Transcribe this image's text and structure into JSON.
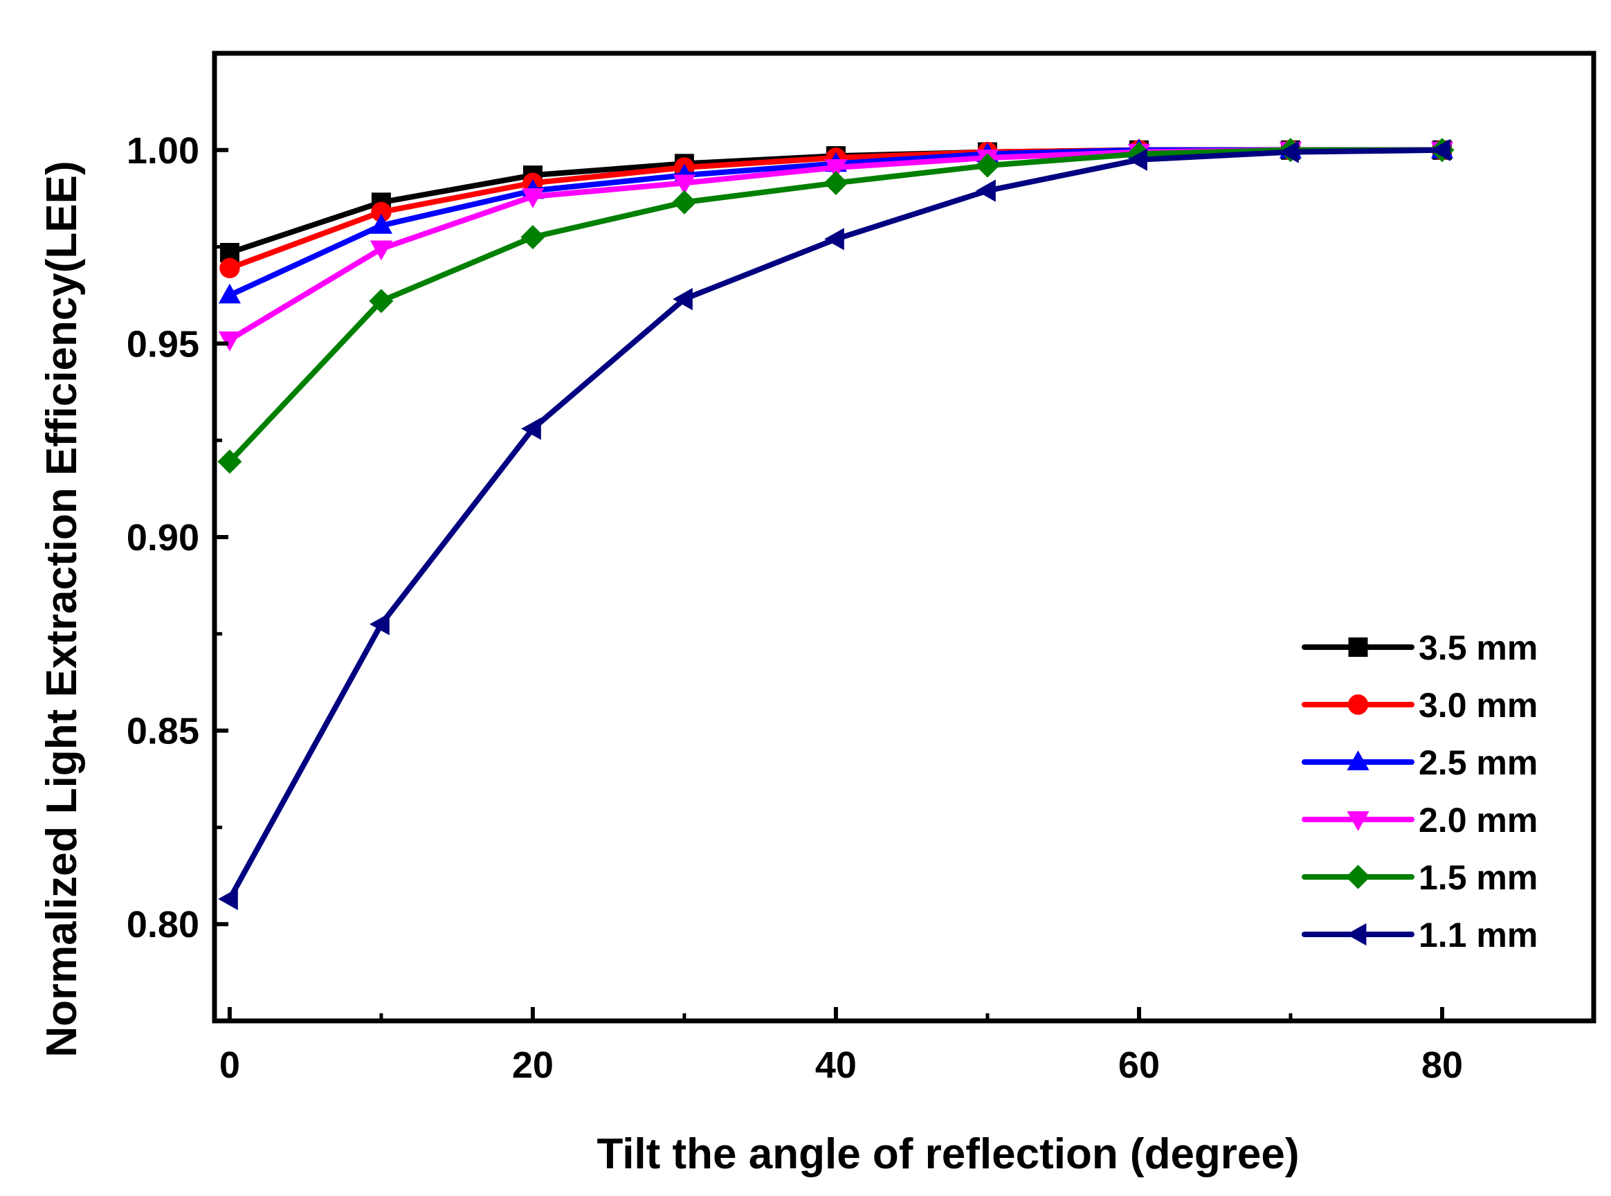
{
  "chart_data": {
    "type": "line",
    "xlabel": "Tilt the angle of reflection (degree)",
    "ylabel": "Normalized Light Extraction Efficiency(LEE)",
    "xlim": [
      -1,
      90
    ],
    "ylim": [
      0.775,
      1.025
    ],
    "xticks": [
      0,
      20,
      40,
      60,
      80
    ],
    "xtick_labels": [
      "0",
      "20",
      "40",
      "60",
      "80"
    ],
    "yticks": [
      0.8,
      0.85,
      0.9,
      0.95,
      1.0
    ],
    "ytick_labels": [
      "0.80",
      "0.85",
      "0.90",
      "0.95",
      "1.00"
    ],
    "grid": false,
    "legend_position": "bottom-right",
    "x": [
      0,
      10,
      20,
      30,
      40,
      50,
      60,
      70,
      80
    ],
    "series": [
      {
        "name": "3.5 mm",
        "color": "#000000",
        "marker": "square",
        "values": [
          0.9735,
          0.9865,
          0.9935,
          0.9965,
          0.9985,
          0.9995,
          1.0,
          1.0,
          1.0
        ]
      },
      {
        "name": "3.0 mm",
        "color": "#ff0000",
        "marker": "circle",
        "values": [
          0.9695,
          0.984,
          0.9915,
          0.9955,
          0.998,
          0.9995,
          1.0,
          1.0,
          1.0
        ]
      },
      {
        "name": "2.5 mm",
        "color": "#0000ff",
        "marker": "triangle-up",
        "values": [
          0.9625,
          0.9805,
          0.9895,
          0.9935,
          0.9965,
          0.999,
          1.0,
          1.0,
          1.0
        ]
      },
      {
        "name": "2.0 mm",
        "color": "#ff00ff",
        "marker": "triangle-down",
        "values": [
          0.951,
          0.9745,
          0.988,
          0.9915,
          0.9955,
          0.998,
          0.9995,
          1.0,
          1.0
        ]
      },
      {
        "name": "1.5 mm",
        "color": "#008000",
        "marker": "diamond",
        "values": [
          0.9195,
          0.961,
          0.9775,
          0.9865,
          0.9915,
          0.996,
          0.999,
          1.0,
          1.0
        ]
      },
      {
        "name": "1.1 mm",
        "color": "#000080",
        "marker": "triangle-left",
        "values": [
          0.8065,
          0.8775,
          0.928,
          0.9615,
          0.977,
          0.9895,
          0.9975,
          0.9995,
          1.0
        ]
      }
    ]
  }
}
